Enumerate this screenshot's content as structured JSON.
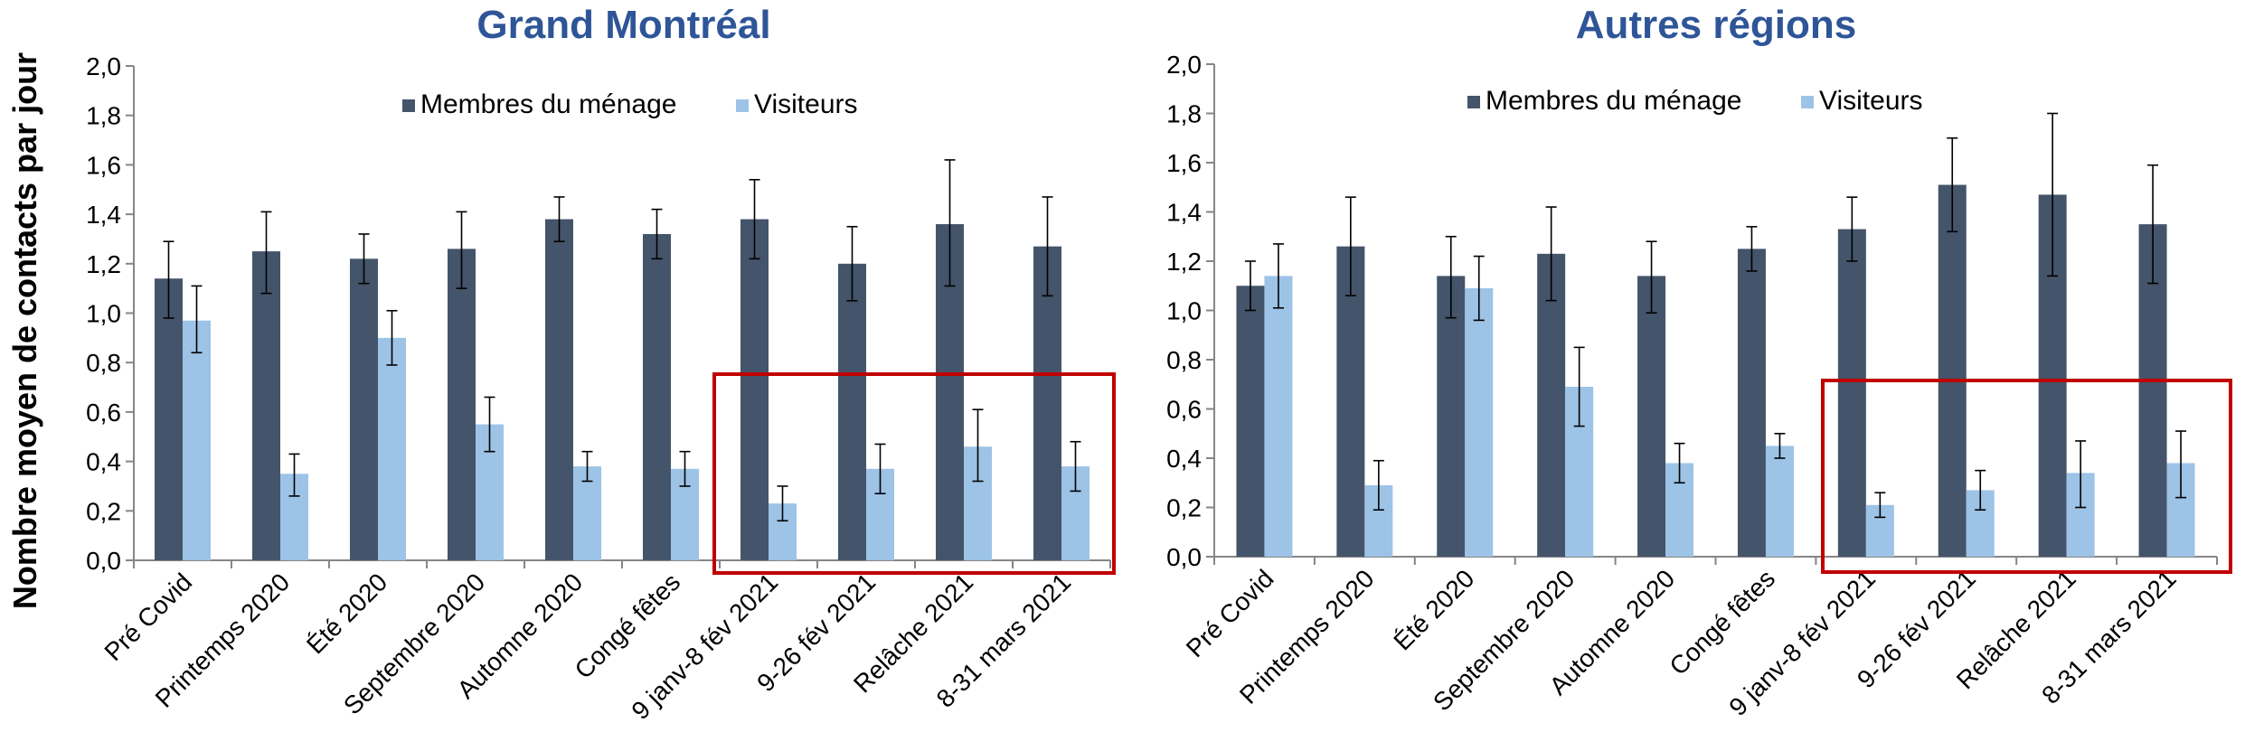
{
  "y_axis_title": "Nombre moyen de contacts par jour",
  "colors": {
    "household": "#44546a",
    "visitors": "#9dc3e6",
    "highlight": "#c00000",
    "title": "#2e5597"
  },
  "chart_data": [
    {
      "type": "bar",
      "title": "Grand Montréal",
      "ylabel": "Nombre moyen de contacts par jour",
      "ylim": [
        0,
        2.0
      ],
      "yticks": [
        "0,0",
        "0,2",
        "0,4",
        "0,6",
        "0,8",
        "1,0",
        "1,2",
        "1,4",
        "1,6",
        "1,8",
        "2,0"
      ],
      "categories": [
        "Pré Covid",
        "Printemps 2020",
        "Été 2020",
        "Septembre 2020",
        "Automne 2020",
        "Congé fêtes",
        "9 janv-8 fév 2021",
        "9-26 fév 2021",
        "Relâche 2021",
        "8-31 mars 2021"
      ],
      "legend": "top-center",
      "highlighted_range": [
        "9 janv-8 fév 2021",
        "8-31 mars 2021"
      ],
      "series": [
        {
          "name": "Membres du ménage",
          "values": [
            1.14,
            1.25,
            1.22,
            1.26,
            1.38,
            1.32,
            1.38,
            1.2,
            1.36,
            1.27
          ],
          "err_low": [
            0.98,
            1.08,
            1.12,
            1.1,
            1.29,
            1.22,
            1.22,
            1.05,
            1.11,
            1.07
          ],
          "err_high": [
            1.29,
            1.41,
            1.32,
            1.41,
            1.47,
            1.42,
            1.54,
            1.35,
            1.62,
            1.47
          ]
        },
        {
          "name": "Visiteurs",
          "values": [
            0.97,
            0.35,
            0.9,
            0.55,
            0.38,
            0.37,
            0.23,
            0.37,
            0.46,
            0.38
          ],
          "err_low": [
            0.84,
            0.26,
            0.79,
            0.44,
            0.32,
            0.3,
            0.16,
            0.27,
            0.32,
            0.28
          ],
          "err_high": [
            1.11,
            0.43,
            1.01,
            0.66,
            0.44,
            0.44,
            0.3,
            0.47,
            0.61,
            0.48
          ]
        }
      ]
    },
    {
      "type": "bar",
      "title": "Autres régions",
      "ylabel": "",
      "ylim": [
        0,
        2.0
      ],
      "yticks": [
        "0,0",
        "0,2",
        "0,4",
        "0,6",
        "0,8",
        "1,0",
        "1,2",
        "1,4",
        "1,6",
        "1,8",
        "2,0"
      ],
      "categories": [
        "Pré Covid",
        "Printemps 2020",
        "Été 2020",
        "Septembre 2020",
        "Automne 2020",
        "Congé fêtes",
        "9 janv-8 fév 2021",
        "9-26 fév 2021",
        "Relâche 2021",
        "8-31 mars 2021"
      ],
      "legend": "top-center",
      "highlighted_range": [
        "9 janv-8 fév 2021",
        "8-31 mars 2021"
      ],
      "series": [
        {
          "name": "Membres du ménage",
          "values": [
            1.1,
            1.26,
            1.14,
            1.23,
            1.14,
            1.25,
            1.33,
            1.51,
            1.47,
            1.35
          ],
          "err_low": [
            1.0,
            1.06,
            0.97,
            1.04,
            0.99,
            1.16,
            1.2,
            1.32,
            1.14,
            1.11
          ],
          "err_high": [
            1.2,
            1.46,
            1.3,
            1.42,
            1.28,
            1.34,
            1.46,
            1.7,
            1.8,
            1.59
          ]
        },
        {
          "name": "Visiteurs",
          "values": [
            1.14,
            0.29,
            1.09,
            0.69,
            0.38,
            0.45,
            0.21,
            0.27,
            0.34,
            0.38
          ],
          "err_low": [
            1.01,
            0.19,
            0.96,
            0.53,
            0.3,
            0.4,
            0.16,
            0.19,
            0.2,
            0.24
          ],
          "err_high": [
            1.27,
            0.39,
            1.22,
            0.85,
            0.46,
            0.5,
            0.26,
            0.35,
            0.47,
            0.51
          ]
        }
      ]
    }
  ]
}
